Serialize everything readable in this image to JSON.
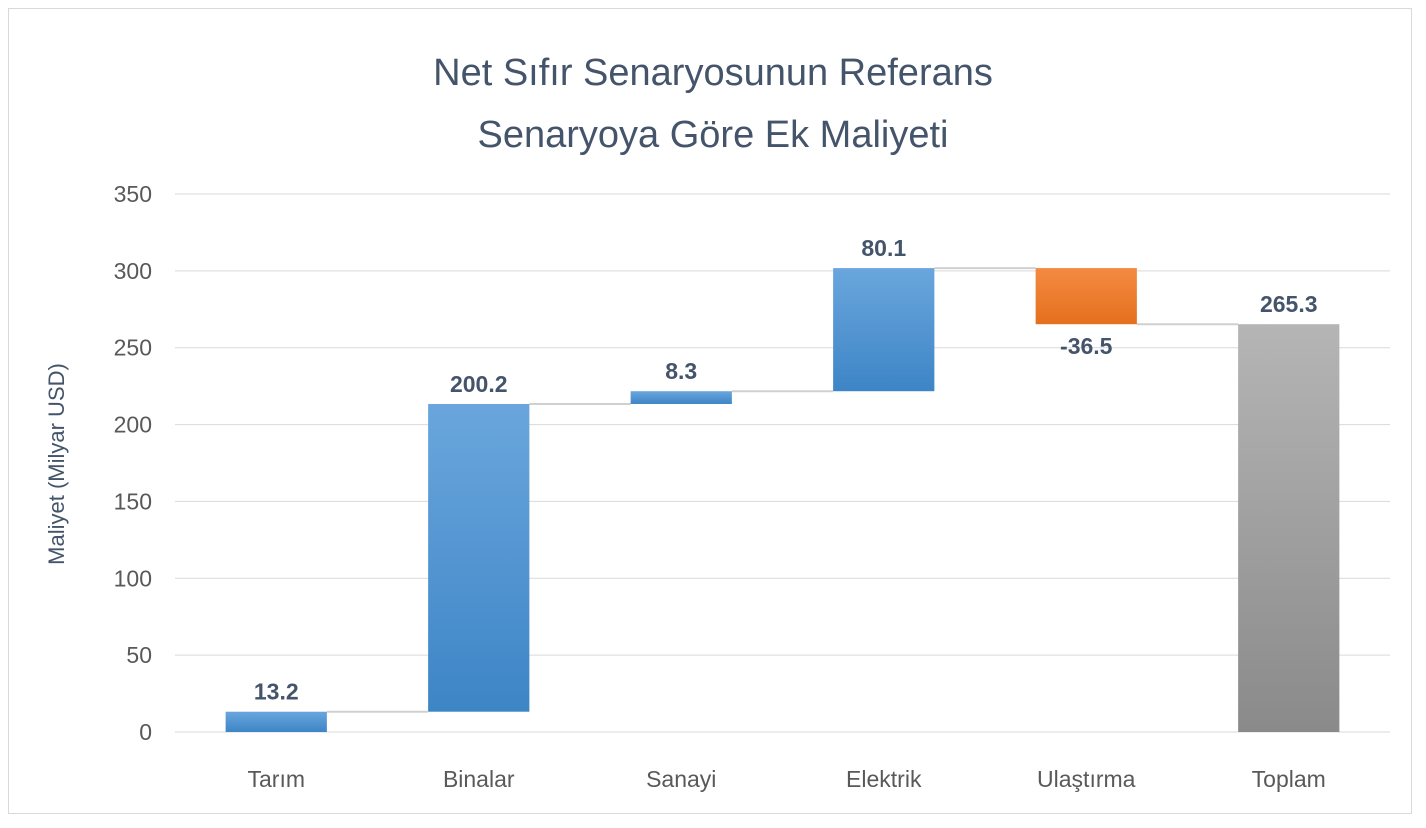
{
  "chart_data": {
    "type": "waterfall",
    "title_lines": [
      "Net Sıfır Senaryosunun Referans",
      "Senaryoya Göre Ek Maliyeti"
    ],
    "xlabel": "",
    "ylabel": "Maliyet (Milyar USD)",
    "ylim": [
      0,
      350
    ],
    "yticks": [
      0,
      50,
      100,
      150,
      200,
      250,
      300,
      350
    ],
    "grid": true,
    "legend": "none",
    "categories": [
      "Tarım",
      "Binalar",
      "Sanayi",
      "Elektrik",
      "Ulaştırma",
      "Toplam"
    ],
    "values": [
      13.2,
      200.2,
      8.3,
      80.1,
      -36.5,
      265.3
    ],
    "labels": [
      "13.2",
      "200.2",
      "8.3",
      "80.1",
      "-36.5",
      "265.3"
    ],
    "is_total": [
      false,
      false,
      false,
      false,
      false,
      true
    ],
    "colors": {
      "increase": "#5b9bd5",
      "decrease": "#ed7d31",
      "total": "#a5a5a5",
      "grid": "#d9d9d9",
      "text": "#595959",
      "title": "#44546a",
      "label": "#44546a"
    }
  }
}
